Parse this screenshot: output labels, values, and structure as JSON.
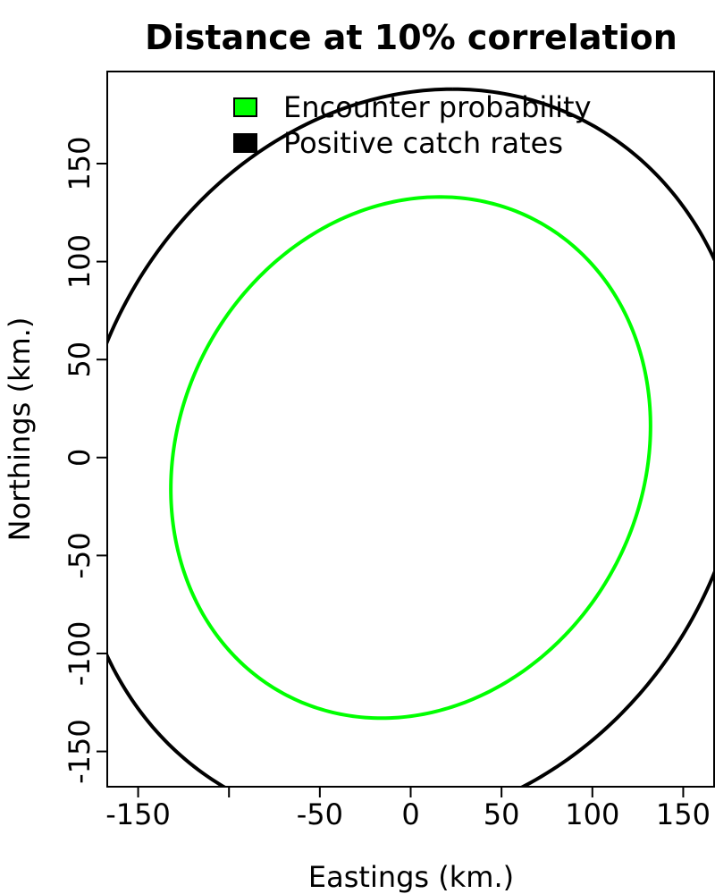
{
  "chart_data": {
    "type": "line",
    "title": "Distance at 10% correlation",
    "xlabel": "Eastings (km.)",
    "ylabel": "Northings (km.)",
    "xlim": [
      -167,
      167
    ],
    "ylim": [
      -168,
      197
    ],
    "x_ticks": [
      -150,
      -100,
      -50,
      0,
      50,
      100,
      150
    ],
    "x_tick_labels": [
      "-150",
      "",
      "-50",
      "0",
      "50",
      "100",
      "150"
    ],
    "y_ticks": [
      -150,
      -100,
      -50,
      0,
      50,
      100,
      150
    ],
    "y_tick_labels": [
      "-150",
      "-100",
      "-50",
      "0",
      "50",
      "100",
      "150"
    ],
    "grid": false,
    "legend_position": "top",
    "series": [
      {
        "name": "Encounter probability",
        "color": "#00ff00",
        "shape": "ellipse",
        "center": [
          0,
          0
        ],
        "x_extent": [
          -132,
          132
        ],
        "y_extent": [
          -133,
          133
        ],
        "x_at_top": 16,
        "x_at_bottom": -16
      },
      {
        "name": "Positive catch rates",
        "color": "#000000",
        "shape": "ellipse",
        "center": [
          0,
          0
        ],
        "x_extent": [
          -185,
          185
        ],
        "y_extent": [
          -188,
          188
        ],
        "x_at_top": 23,
        "x_at_bottom": -23
      }
    ]
  }
}
